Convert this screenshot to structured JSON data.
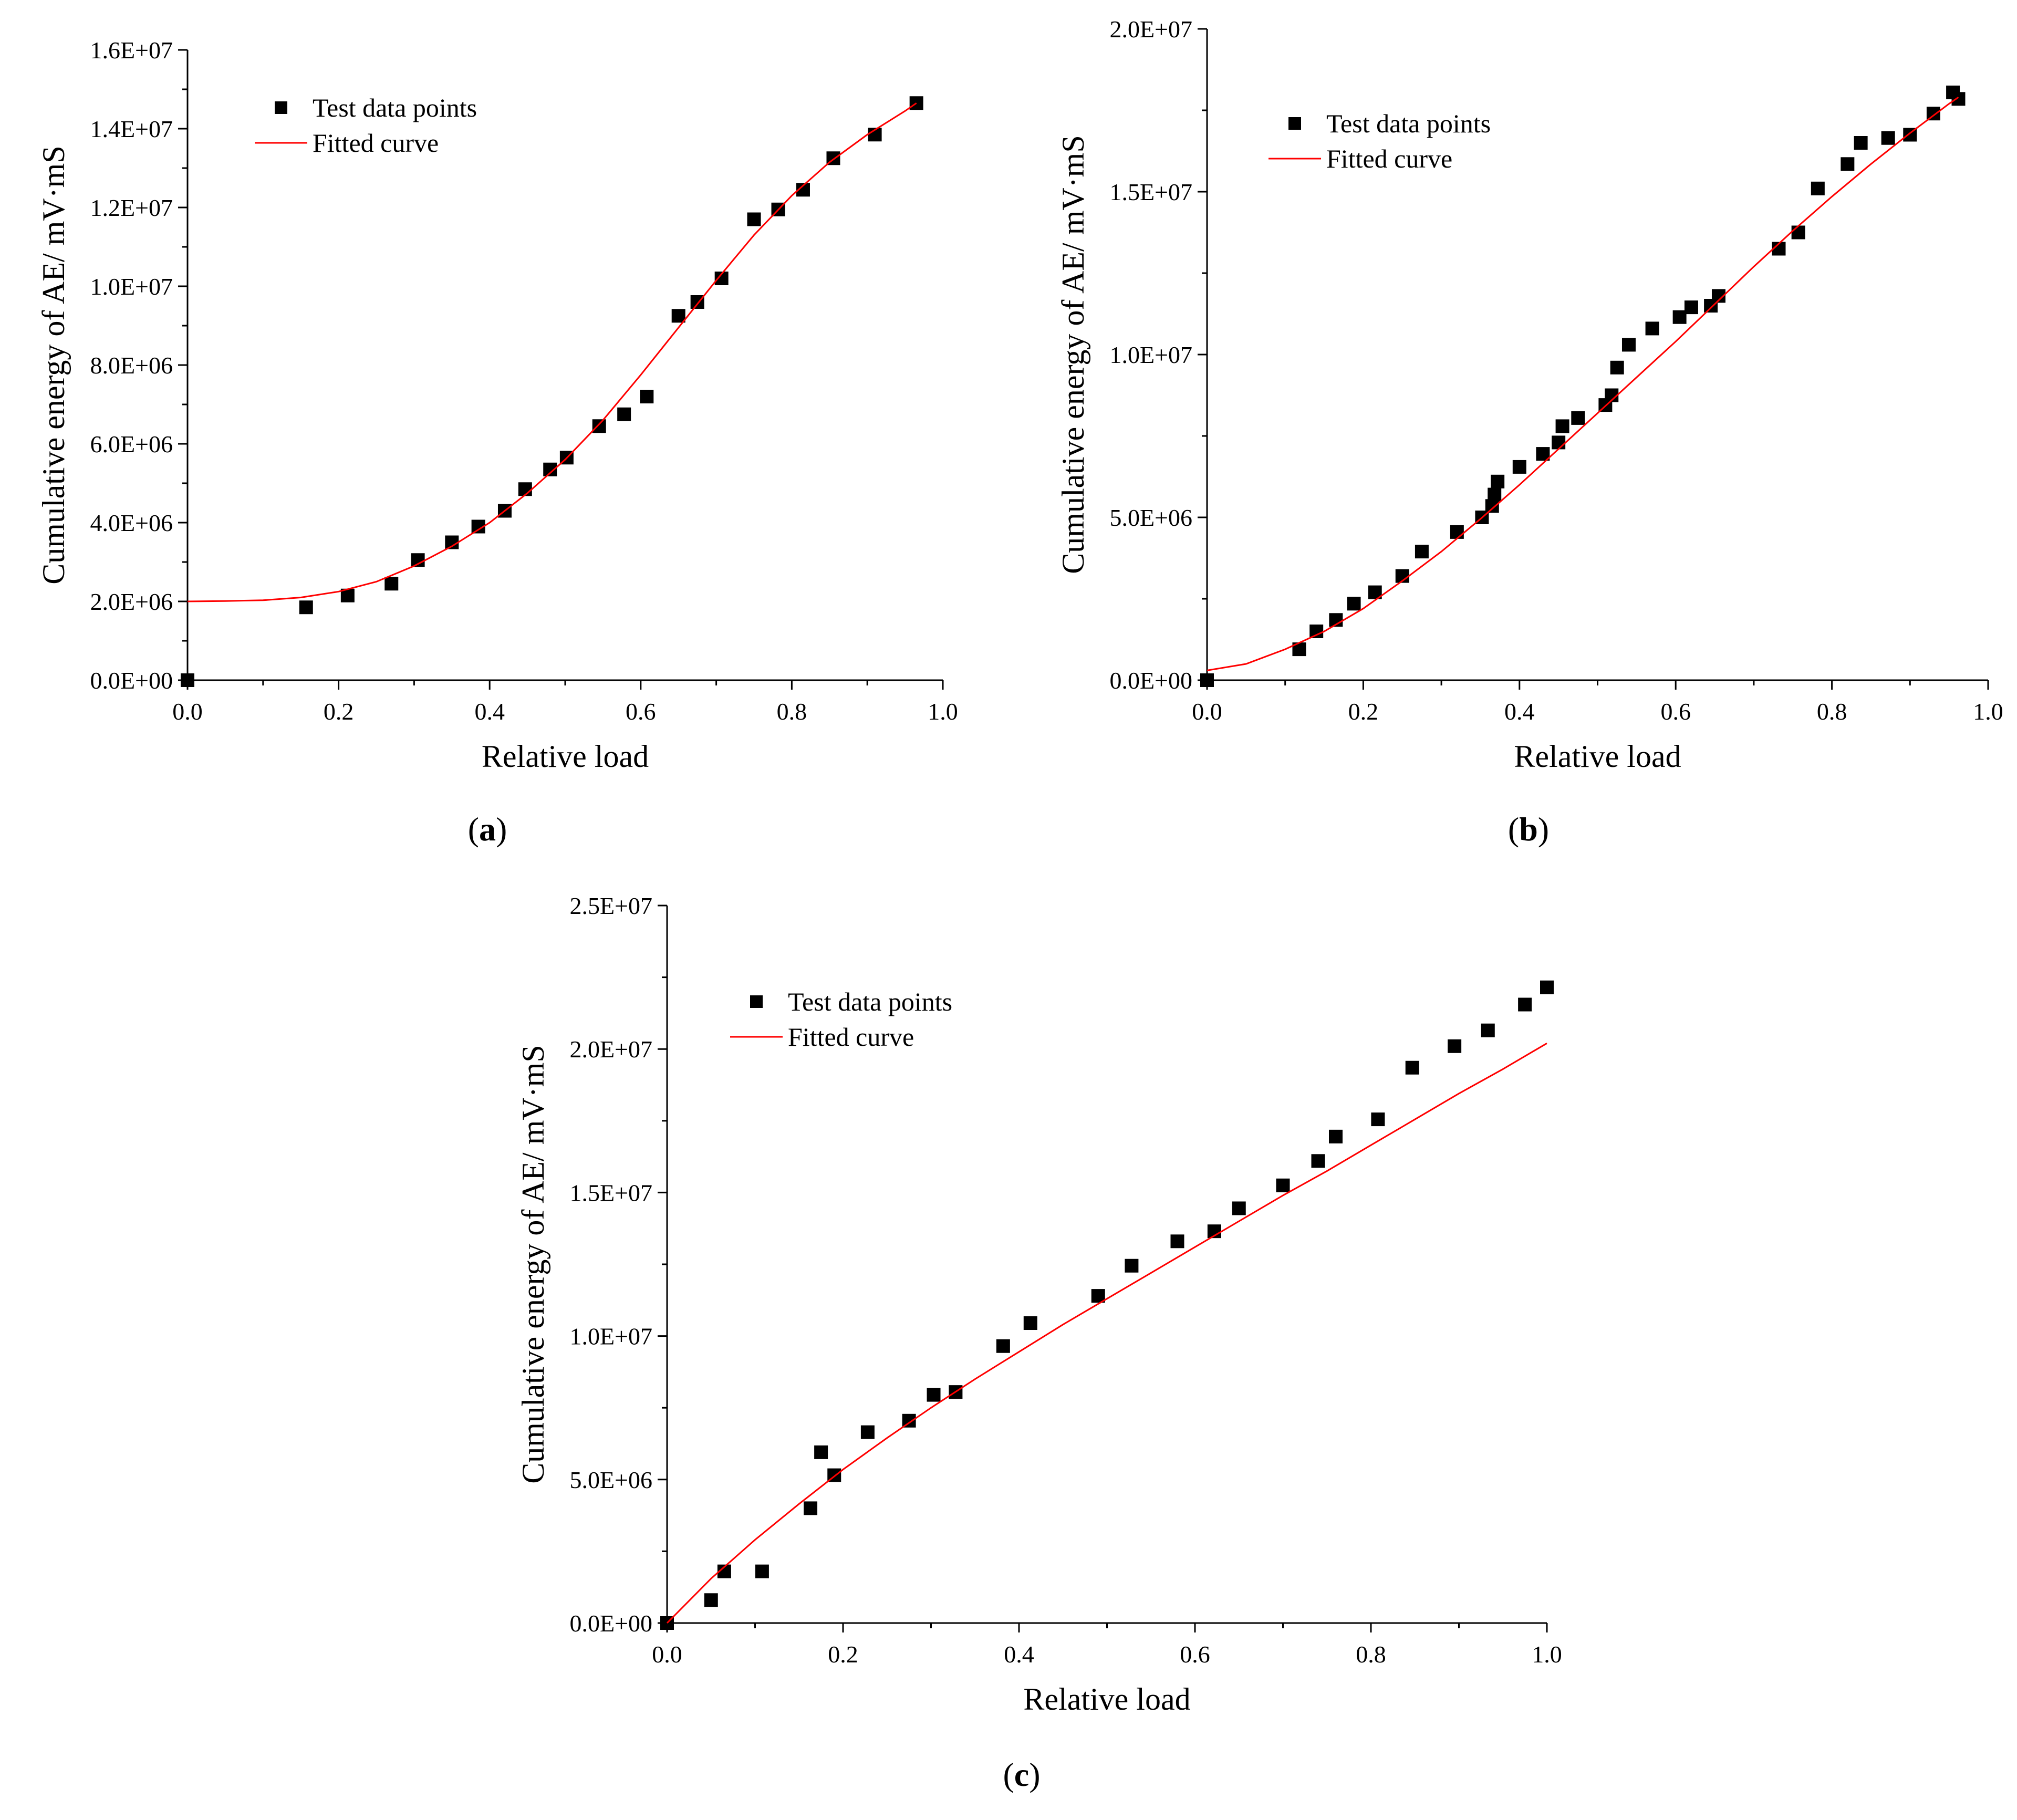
{
  "colors": {
    "axis": "#000000",
    "marker": "#000000",
    "curve": "#ff0000",
    "background": "#ffffff"
  },
  "chart_data": [
    {
      "panel": "(a)",
      "panel_prefix": "(",
      "panel_letter": "a",
      "panel_suffix": ")",
      "type": "scatter",
      "title": "",
      "xlabel": "Relative load",
      "ylabel": "Cumulative energy of AE/ mV·mS",
      "xlim": [
        0,
        1.0
      ],
      "ylim": [
        0,
        16000000
      ],
      "xticks": [
        0,
        0.2,
        0.4,
        0.6,
        0.8,
        1.0
      ],
      "xtick_labels": [
        "0.0",
        "0.2",
        "0.4",
        "0.6",
        "0.8",
        "1.0"
      ],
      "yticks": [
        0,
        2000000,
        4000000,
        6000000,
        8000000,
        10000000,
        12000000,
        14000000,
        16000000
      ],
      "ytick_labels": [
        "0.0E+00",
        "2.0E+06",
        "4.0E+06",
        "6.0E+06",
        "8.0E+06",
        "1.0E+07",
        "1.2E+07",
        "1.4E+07",
        "1.6E+07"
      ],
      "legend": {
        "position": "top-left",
        "entries": [
          "Test data points",
          "Fitted curve"
        ]
      },
      "series": [
        {
          "name": "Test data points",
          "kind": "markers",
          "x": [
            0.0,
            0.157,
            0.212,
            0.27,
            0.305,
            0.35,
            0.385,
            0.42,
            0.447,
            0.48,
            0.502,
            0.545,
            0.578,
            0.608,
            0.65,
            0.675,
            0.707,
            0.75,
            0.782,
            0.815,
            0.855,
            0.91,
            0.965
          ],
          "y": [
            0,
            1850000,
            2150000,
            2450000,
            3050000,
            3500000,
            3900000,
            4300000,
            4850000,
            5350000,
            5650000,
            6450000,
            6750000,
            7200000,
            9250000,
            9600000,
            10200000,
            11700000,
            11950000,
            12450000,
            13250000,
            13850000,
            14650000
          ]
        },
        {
          "name": "Fitted curve",
          "kind": "line",
          "x": [
            0.0,
            0.05,
            0.1,
            0.15,
            0.2,
            0.25,
            0.3,
            0.35,
            0.4,
            0.45,
            0.5,
            0.55,
            0.6,
            0.65,
            0.7,
            0.75,
            0.8,
            0.85,
            0.9,
            0.95,
            0.965
          ],
          "y": [
            2000000,
            2010000,
            2030000,
            2100000,
            2250000,
            2500000,
            2900000,
            3400000,
            4000000,
            4750000,
            5600000,
            6600000,
            7750000,
            8950000,
            10150000,
            11300000,
            12300000,
            13150000,
            13850000,
            14450000,
            14650000
          ]
        }
      ]
    },
    {
      "panel": "(b)",
      "panel_prefix": "(",
      "panel_letter": "b",
      "panel_suffix": ")",
      "type": "scatter",
      "title": "",
      "xlabel": "Relative load",
      "ylabel": "Cumulative energy of AE/ mV·mS",
      "xlim": [
        0,
        1.0
      ],
      "ylim": [
        0,
        20000000
      ],
      "xticks": [
        0,
        0.2,
        0.4,
        0.6,
        0.8,
        1.0
      ],
      "xtick_labels": [
        "0.0",
        "0.2",
        "0.4",
        "0.6",
        "0.8",
        "1.0"
      ],
      "yticks": [
        0,
        5000000,
        10000000,
        15000000,
        20000000
      ],
      "ytick_labels": [
        "0.0E+00",
        "5.0E+06",
        "1.0E+07",
        "1.5E+07",
        "2.0E+07"
      ],
      "legend": {
        "position": "top-left",
        "entries": [
          "Test data points",
          "Fitted curve"
        ]
      },
      "series": [
        {
          "name": "Test data points",
          "kind": "markers",
          "x": [
            0.0,
            0.118,
            0.14,
            0.165,
            0.188,
            0.215,
            0.25,
            0.275,
            0.32,
            0.352,
            0.365,
            0.368,
            0.372,
            0.4,
            0.43,
            0.45,
            0.455,
            0.475,
            0.51,
            0.518,
            0.525,
            0.54,
            0.57,
            0.605,
            0.62,
            0.645,
            0.655,
            0.732,
            0.757,
            0.782,
            0.82,
            0.837,
            0.872,
            0.9,
            0.93,
            0.955,
            0.962
          ],
          "y": [
            0,
            950000,
            1500000,
            1850000,
            2350000,
            2700000,
            3200000,
            3950000,
            4550000,
            5000000,
            5350000,
            5700000,
            6100000,
            6550000,
            6950000,
            7300000,
            7800000,
            8050000,
            8450000,
            8750000,
            9600000,
            10300000,
            10800000,
            11150000,
            11450000,
            11500000,
            11800000,
            13250000,
            13750000,
            15100000,
            15850000,
            16500000,
            16650000,
            16750000,
            17400000,
            18050000,
            17850000
          ]
        },
        {
          "name": "Fitted curve",
          "kind": "line",
          "x": [
            0.0,
            0.05,
            0.1,
            0.15,
            0.2,
            0.25,
            0.3,
            0.35,
            0.4,
            0.45,
            0.5,
            0.55,
            0.6,
            0.65,
            0.7,
            0.75,
            0.8,
            0.85,
            0.9,
            0.95,
            0.962
          ],
          "y": [
            300000,
            500000,
            950000,
            1500000,
            2200000,
            3050000,
            3950000,
            4950000,
            6000000,
            7100000,
            8200000,
            9300000,
            10400000,
            11550000,
            12700000,
            13800000,
            14850000,
            15850000,
            16800000,
            17700000,
            17900000
          ]
        }
      ]
    },
    {
      "panel": "(c)",
      "panel_prefix": "(",
      "panel_letter": "c",
      "panel_suffix": ")",
      "type": "scatter",
      "title": "",
      "xlabel": "Relative load",
      "ylabel": "Cumulative energy of AE/ mV·mS",
      "xlim": [
        0,
        1.0
      ],
      "ylim": [
        0,
        25000000
      ],
      "xticks": [
        0,
        0.2,
        0.4,
        0.6,
        0.8,
        1.0
      ],
      "xtick_labels": [
        "0.0",
        "0.2",
        "0.4",
        "0.6",
        "0.8",
        "1.0"
      ],
      "yticks": [
        0,
        5000000,
        10000000,
        15000000,
        20000000,
        25000000
      ],
      "ytick_labels": [
        "0.0E+00",
        "5.0E+06",
        "1.0E+07",
        "1.5E+07",
        "2.0E+07",
        "2.5E+07"
      ],
      "legend": {
        "position": "top-left",
        "entries": [
          "Test data points",
          "Fitted curve"
        ]
      },
      "series": [
        {
          "name": "Test data points",
          "kind": "markers",
          "x": [
            0.0,
            0.05,
            0.065,
            0.108,
            0.163,
            0.175,
            0.19,
            0.228,
            0.275,
            0.303,
            0.328,
            0.382,
            0.413,
            0.49,
            0.528,
            0.58,
            0.622,
            0.65,
            0.7,
            0.74,
            0.76,
            0.808,
            0.847,
            0.895,
            0.933,
            0.975,
            1.0
          ],
          "y": [
            0,
            800000,
            1800000,
            1800000,
            4000000,
            5950000,
            5150000,
            6650000,
            7050000,
            7950000,
            8050000,
            9650000,
            10450000,
            11400000,
            12450000,
            13300000,
            13650000,
            14450000,
            15250000,
            16100000,
            16950000,
            17550000,
            19350000,
            20100000,
            20650000,
            21550000,
            22150000
          ]
        },
        {
          "name": "Fitted curve",
          "kind": "line",
          "x": [
            0.0,
            0.05,
            0.1,
            0.15,
            0.2,
            0.25,
            0.3,
            0.35,
            0.4,
            0.45,
            0.5,
            0.55,
            0.6,
            0.65,
            0.7,
            0.75,
            0.8,
            0.85,
            0.9,
            0.95,
            1.0
          ],
          "y": [
            0,
            1550000,
            2900000,
            4150000,
            5350000,
            6450000,
            7500000,
            8500000,
            9450000,
            10400000,
            11300000,
            12200000,
            13100000,
            14000000,
            14900000,
            15750000,
            16650000,
            17550000,
            18450000,
            19300000,
            20200000
          ]
        }
      ]
    }
  ]
}
